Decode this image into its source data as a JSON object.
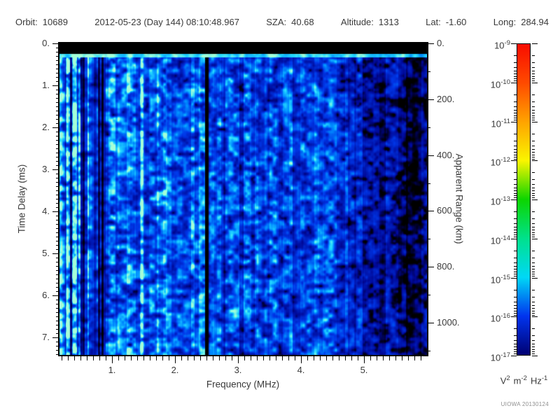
{
  "header": {
    "segments": [
      {
        "label": "Orbit:",
        "value": "10689"
      },
      {
        "label": "",
        "value": "2012-05-23 (Day 144) 08:10:48.967"
      },
      {
        "label": "SZA:",
        "value": "40.68"
      },
      {
        "label": "Altitude:",
        "value": "1313"
      },
      {
        "label": "Lat:",
        "value": "-1.60"
      },
      {
        "label": "Long:",
        "value": "284.94"
      }
    ]
  },
  "chart_data": {
    "type": "heatmap",
    "xlabel": "Frequency (MHz)",
    "ylabel_left": "Time Delay (ms)",
    "ylabel_right": "Apparent Range (km)",
    "x_range": [
      0.17,
      6.0
    ],
    "x_ticks": {
      "values": [
        1,
        2,
        3,
        4,
        5
      ],
      "labels": [
        "1.",
        "2.",
        "3.",
        "4.",
        "5."
      ],
      "minor_step": 0.1
    },
    "y_ms_range": [
      0,
      7.417
    ],
    "y_ticks_ms": {
      "values": [
        0,
        1,
        2,
        3,
        4,
        5,
        6,
        7
      ],
      "labels": [
        "0.",
        "1.",
        "2.",
        "3.",
        "4.",
        "5.",
        "6.",
        "7."
      ],
      "minor_step": 0.1
    },
    "y_km_range": [
      0,
      1115
    ],
    "y_ticks_km": {
      "values": [
        0,
        200,
        400,
        600,
        800,
        1000
      ],
      "labels": [
        "0.",
        "200.",
        "400.",
        "600.",
        "800.",
        "1000."
      ],
      "minor_step": 100
    },
    "colorbar": {
      "scale": "log",
      "exponents": [
        "-9",
        "-10",
        "-11",
        "-12",
        "-13",
        "-14",
        "-15",
        "-16",
        "-17"
      ],
      "unit_parts": [
        [
          "V",
          "2"
        ],
        [
          "m",
          "-2"
        ],
        [
          "Hz",
          "-1"
        ]
      ],
      "gradient": [
        [
          "#f80c00",
          0
        ],
        [
          "#ff4a00",
          12.5
        ],
        [
          "#ffa300",
          25
        ],
        [
          "#faf500",
          37.5
        ],
        [
          "#0cd500",
          50
        ],
        [
          "#00e18c",
          62.5
        ],
        [
          "#00d8f6",
          75
        ],
        [
          "#0134ee",
          87.5
        ],
        [
          "#000072",
          100
        ]
      ]
    },
    "features": {
      "noise_seed": 20130124,
      "black_top_band_ms": [
        0,
        0.25
      ],
      "bright_surface_line_ms": 0.3,
      "dark_vline_mhz": 2.5,
      "bright_vlines_mhz": [
        0.19,
        0.29,
        0.4,
        1.48
      ],
      "striped_region_max_mhz": 0.9,
      "faint_region_min_mhz": 4.45
    }
  },
  "footer": {
    "credit": "UIOWA 20130124"
  }
}
